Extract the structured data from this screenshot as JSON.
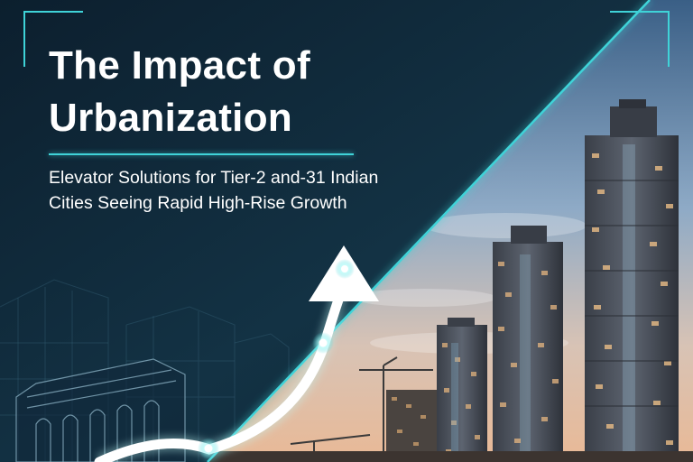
{
  "title_lines": [
    "The Impact of",
    "Urbanization"
  ],
  "subtitle_lines": [
    "Elevator Solutions for Tier-2 and-31 Indian",
    "Cities Seeing Rapid High-Rise Growth"
  ],
  "colors": {
    "accent": "#3fd3d8",
    "background": "#0b1c2a",
    "text": "#ffffff"
  },
  "icons": [
    "growth-arrow-icon",
    "corner-bracket-icon"
  ]
}
